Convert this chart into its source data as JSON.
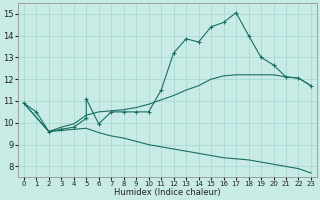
{
  "background_color": "#c8ebe6",
  "grid_color": "#a8d8d2",
  "line_color": "#1a6e62",
  "xlabel": "Humidex (Indice chaleur)",
  "xlim": [
    -0.5,
    23.5
  ],
  "ylim": [
    7.5,
    15.5
  ],
  "xticks": [
    0,
    1,
    2,
    3,
    4,
    5,
    6,
    7,
    8,
    9,
    10,
    11,
    12,
    13,
    14,
    15,
    16,
    17,
    18,
    19,
    20,
    21,
    22,
    23
  ],
  "yticks": [
    8,
    9,
    10,
    11,
    12,
    13,
    14,
    15
  ],
  "line1_x": [
    0,
    1,
    2,
    3,
    4,
    5,
    5,
    6,
    7,
    8,
    9,
    10,
    11,
    12,
    13,
    14,
    15,
    16,
    17,
    18,
    19,
    20,
    21,
    22,
    23
  ],
  "line1_y": [
    10.9,
    10.5,
    9.6,
    9.7,
    9.8,
    10.2,
    11.1,
    9.95,
    10.5,
    10.5,
    10.5,
    10.5,
    11.5,
    13.2,
    13.85,
    13.7,
    14.4,
    14.6,
    15.05,
    14.0,
    13.0,
    12.65,
    12.1,
    12.05,
    11.7
  ],
  "line2_x": [
    0,
    2,
    3,
    4,
    5,
    6,
    7,
    8,
    9,
    10,
    11,
    12,
    13,
    14,
    15,
    16,
    17,
    18,
    19,
    20,
    21,
    22,
    23
  ],
  "line2_y": [
    10.9,
    9.6,
    9.8,
    9.95,
    10.35,
    10.5,
    10.55,
    10.6,
    10.7,
    10.85,
    11.05,
    11.25,
    11.5,
    11.7,
    12.0,
    12.15,
    12.2,
    12.2,
    12.2,
    12.2,
    12.1,
    12.05,
    11.7
  ],
  "line3_x": [
    0,
    2,
    3,
    4,
    5,
    6,
    7,
    8,
    9,
    10,
    11,
    12,
    13,
    14,
    15,
    16,
    17,
    18,
    19,
    20,
    21,
    22,
    23
  ],
  "line3_y": [
    10.9,
    9.6,
    9.65,
    9.7,
    9.75,
    9.55,
    9.4,
    9.3,
    9.15,
    9.0,
    8.9,
    8.8,
    8.7,
    8.6,
    8.5,
    8.4,
    8.35,
    8.3,
    8.2,
    8.1,
    8.0,
    7.9,
    7.7
  ]
}
